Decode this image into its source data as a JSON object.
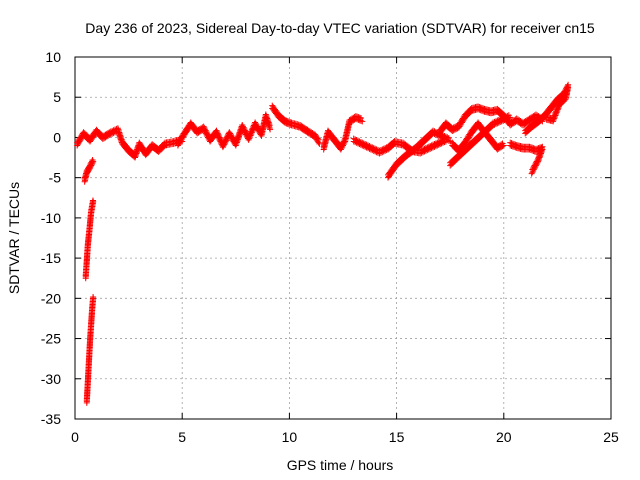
{
  "chart_data": {
    "type": "scatter",
    "title": "Day 236 of 2023, Sidereal Day-to-day VTEC variation (SDTVAR) for receiver cn15",
    "xlabel": "GPS time / hours",
    "ylabel": "SDTVAR / TECUs",
    "xlim": [
      0,
      25
    ],
    "ylim": [
      -35,
      10
    ],
    "xticks": [
      0,
      5,
      10,
      15,
      20,
      25
    ],
    "yticks": [
      -35,
      -30,
      -25,
      -20,
      -15,
      -10,
      -5,
      0,
      5,
      10
    ],
    "grid": true,
    "marker": "plus",
    "color": "#ff0000",
    "series": [
      {
        "name": "SDTVAR",
        "segments": [
          [
            [
              0.55,
              -33.0
            ],
            [
              0.6,
              -30.5
            ],
            [
              0.65,
              -28.0
            ],
            [
              0.7,
              -25.5
            ],
            [
              0.75,
              -23.5
            ],
            [
              0.8,
              -21.5
            ],
            [
              0.85,
              -20.0
            ]
          ],
          [
            [
              0.5,
              -17.5
            ],
            [
              0.55,
              -15.5
            ],
            [
              0.6,
              -13.5
            ],
            [
              0.68,
              -11.5
            ],
            [
              0.75,
              -9.5
            ],
            [
              0.85,
              -8.0
            ]
          ],
          [
            [
              0.45,
              -5.5
            ],
            [
              0.55,
              -4.5
            ],
            [
              0.7,
              -3.8
            ],
            [
              0.85,
              -3.0
            ]
          ],
          [
            [
              0.1,
              -1.0
            ],
            [
              0.4,
              0.3
            ],
            [
              0.7,
              -0.5
            ],
            [
              1.0,
              0.6
            ],
            [
              1.3,
              -0.2
            ],
            [
              1.6,
              0.3
            ],
            [
              2.0,
              0.8
            ],
            [
              2.2,
              -0.8
            ],
            [
              2.5,
              -1.8
            ],
            [
              2.8,
              -2.5
            ],
            [
              3.0,
              -1.0
            ],
            [
              3.3,
              -2.2
            ],
            [
              3.6,
              -1.2
            ],
            [
              3.9,
              -1.8
            ],
            [
              4.2,
              -1.0
            ],
            [
              4.6,
              -0.8
            ],
            [
              5.0,
              -0.5
            ]
          ],
          [
            [
              4.8,
              -1.0
            ],
            [
              5.1,
              0.3
            ],
            [
              5.4,
              1.5
            ],
            [
              5.7,
              0.5
            ],
            [
              6.0,
              1.0
            ],
            [
              6.3,
              -0.5
            ],
            [
              6.6,
              0.5
            ],
            [
              6.9,
              -1.2
            ],
            [
              7.2,
              0.3
            ],
            [
              7.5,
              -1.0
            ],
            [
              7.8,
              1.2
            ],
            [
              8.1,
              -0.3
            ],
            [
              8.4,
              1.5
            ],
            [
              8.7,
              0.2
            ],
            [
              8.9,
              2.5
            ],
            [
              9.1,
              1.0
            ]
          ],
          [
            [
              9.2,
              3.6
            ],
            [
              9.5,
              2.5
            ],
            [
              9.8,
              1.8
            ],
            [
              10.1,
              1.5
            ],
            [
              10.5,
              1.2
            ],
            [
              10.9,
              0.5
            ],
            [
              11.2,
              0.0
            ],
            [
              11.4,
              -0.8
            ]
          ],
          [
            [
              11.6,
              -1.5
            ],
            [
              11.8,
              0.5
            ],
            [
              12.1,
              -0.5
            ],
            [
              12.4,
              -1.5
            ],
            [
              12.6,
              -0.5
            ],
            [
              12.8,
              1.8
            ],
            [
              13.1,
              2.3
            ],
            [
              13.4,
              2.0
            ]
          ],
          [
            [
              13.0,
              -0.5
            ],
            [
              13.4,
              -1.0
            ],
            [
              13.8,
              -1.5
            ],
            [
              14.2,
              -2.0
            ],
            [
              14.6,
              -1.5
            ],
            [
              14.9,
              -0.8
            ],
            [
              15.3,
              -1.0
            ],
            [
              15.7,
              -1.8
            ],
            [
              16.1,
              -2.0
            ],
            [
              16.5,
              -1.5
            ],
            [
              16.9,
              -1.0
            ],
            [
              17.3,
              -0.5
            ]
          ],
          [
            [
              14.6,
              -5.0
            ],
            [
              15.0,
              -3.5
            ],
            [
              15.4,
              -2.5
            ],
            [
              15.9,
              -1.5
            ],
            [
              16.3,
              -0.5
            ],
            [
              16.7,
              0.5
            ],
            [
              17.1,
              0.0
            ],
            [
              17.5,
              -0.5
            ]
          ],
          [
            [
              17.6,
              -1.0
            ],
            [
              17.9,
              -1.8
            ],
            [
              18.2,
              -0.8
            ],
            [
              18.5,
              0.5
            ],
            [
              18.8,
              1.5
            ],
            [
              19.1,
              0.5
            ],
            [
              19.4,
              -0.5
            ],
            [
              19.7,
              -1.5
            ],
            [
              20.0,
              -1.0
            ]
          ],
          [
            [
              17.0,
              0.5
            ],
            [
              17.3,
              1.5
            ],
            [
              17.6,
              0.8
            ],
            [
              17.9,
              1.2
            ],
            [
              18.2,
              2.5
            ],
            [
              18.5,
              3.3
            ],
            [
              18.8,
              3.5
            ],
            [
              19.1,
              3.2
            ],
            [
              19.4,
              3.0
            ],
            [
              19.7,
              3.2
            ],
            [
              20.0,
              2.5
            ],
            [
              20.3,
              1.5
            ],
            [
              20.6,
              2.0
            ],
            [
              20.9,
              1.5
            ],
            [
              21.2,
              2.0
            ],
            [
              21.5,
              2.5
            ],
            [
              21.8,
              2.0
            ]
          ],
          [
            [
              17.5,
              -3.5
            ],
            [
              17.9,
              -2.5
            ],
            [
              18.3,
              -1.5
            ],
            [
              18.7,
              -0.5
            ],
            [
              19.1,
              0.5
            ],
            [
              19.5,
              1.5
            ],
            [
              19.9,
              2.0
            ],
            [
              20.3,
              2.5
            ]
          ],
          [
            [
              20.3,
              -1.0
            ],
            [
              20.6,
              -1.3
            ],
            [
              20.9,
              -1.5
            ],
            [
              21.2,
              -1.5
            ],
            [
              21.5,
              -1.8
            ],
            [
              21.8,
              -1.5
            ],
            [
              21.6,
              -3.0
            ],
            [
              21.3,
              -4.5
            ]
          ],
          [
            [
              21.0,
              0.5
            ],
            [
              21.3,
              1.2
            ],
            [
              21.6,
              1.8
            ],
            [
              21.9,
              2.5
            ],
            [
              22.2,
              3.5
            ],
            [
              22.5,
              4.5
            ],
            [
              22.8,
              5.2
            ],
            [
              23.0,
              6.2
            ],
            [
              22.9,
              4.8
            ],
            [
              22.6,
              4.0
            ],
            [
              22.3,
              2.0
            ],
            [
              22.0,
              2.2
            ]
          ]
        ]
      }
    ]
  }
}
